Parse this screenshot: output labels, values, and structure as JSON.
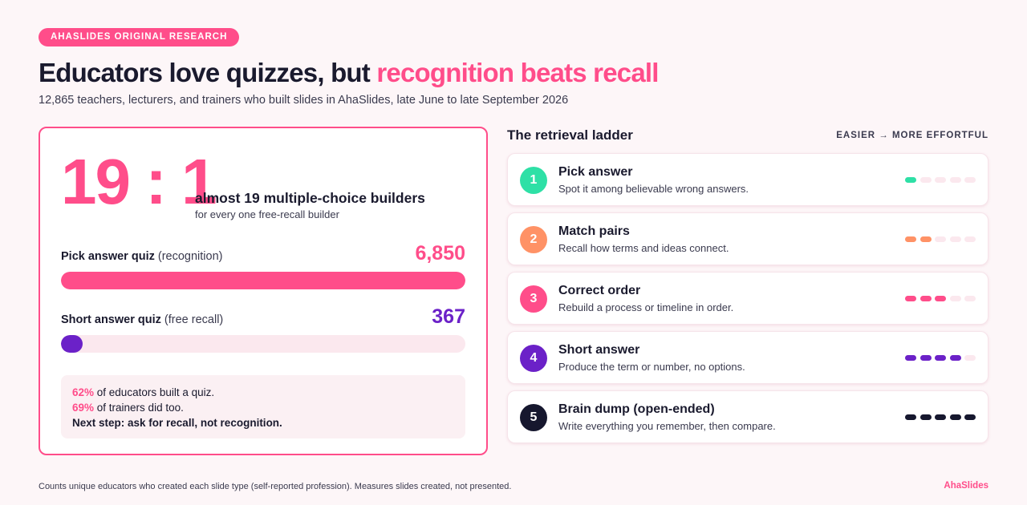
{
  "badge": "AHASLIDES ORIGINAL RESEARCH",
  "title": {
    "main": "Educators love quizzes, but ",
    "highlight": "recognition beats recall"
  },
  "subtitle": "12,865 teachers, lecturers, and trainers who built slides in AhaSlides, late June to late September 2026",
  "summary": {
    "ratio": "19 : 1",
    "headline": "almost 19 multiple-choice builders",
    "sub": "for every one free-recall builder"
  },
  "chart_data": {
    "type": "bar",
    "orientation": "horizontal",
    "categories": [
      "Pick answer quiz",
      "Short answer quiz"
    ],
    "category_notes": [
      "(recognition)",
      "(free recall)"
    ],
    "values": [
      6850,
      367
    ],
    "value_labels": [
      "6,850",
      "367"
    ],
    "colors": [
      "#ff4d8a",
      "#6b21c8"
    ],
    "xlim": [
      0,
      6850
    ],
    "grid": false,
    "legend": "none"
  },
  "note": {
    "line1_pct": "62%",
    "line1_text": " of educators built a quiz.",
    "line2_pct": "69%",
    "line2_text": " of trainers did too.",
    "line3": "Next step: ask for recall, not recognition."
  },
  "ladder": {
    "title": "The retrieval ladder",
    "hint": "EASIER → MORE EFFORTFUL",
    "empty_dot_color": "#fbe8ee",
    "steps": [
      {
        "num": "1",
        "title": "Pick answer",
        "desc": "Spot it among believable wrong answers.",
        "color": "#2ee0a6",
        "level": 1
      },
      {
        "num": "2",
        "title": "Match pairs",
        "desc": "Recall how terms and ideas connect.",
        "color": "#ff9266",
        "level": 2
      },
      {
        "num": "3",
        "title": "Correct order",
        "desc": "Rebuild a process or timeline in order.",
        "color": "#ff4d8a",
        "level": 3
      },
      {
        "num": "4",
        "title": "Short answer",
        "desc": "Produce the term or number, no options.",
        "color": "#6b21c8",
        "level": 4
      },
      {
        "num": "5",
        "title": "Brain dump (open-ended)",
        "desc": "Write everything you remember, then compare.",
        "color": "#16172e",
        "level": 5
      }
    ]
  },
  "footnote": "Counts unique educators who created each slide type (self-reported profession). Measures slides created, not presented.",
  "brand": "AhaSlides"
}
